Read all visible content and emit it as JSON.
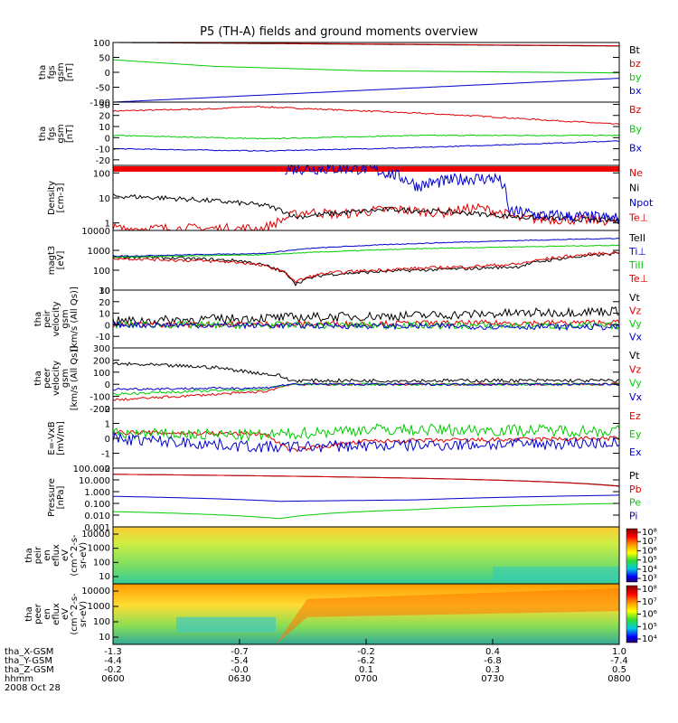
{
  "title": "P5 (TH-A) fields and ground moments overview",
  "chart_data": [
    {
      "id": "p1",
      "type": "line",
      "ylabel": [
        "tha",
        "fgs",
        "gsm",
        "[nT]"
      ],
      "ylim": [
        -100,
        100
      ],
      "yticks": [
        "100",
        "50",
        "0",
        "-50",
        "-100"
      ],
      "ytick_vals": [
        100,
        50,
        0,
        -50,
        -100
      ],
      "series": [
        {
          "name": "Bt",
          "color": "#000000",
          "x": [
            0,
            1
          ],
          "y": [
            100,
            88
          ],
          "noise": 0
        },
        {
          "name": "bz",
          "color": "#dd0000",
          "x": [
            0,
            1
          ],
          "y": [
            101,
            89
          ],
          "noise": 0
        },
        {
          "name": "by",
          "color": "#00cc00",
          "x": [
            0,
            0.2,
            0.5,
            1
          ],
          "y": [
            42,
            20,
            5,
            -2
          ],
          "noise": 0
        },
        {
          "name": "bx",
          "color": "#0000cc",
          "x": [
            0,
            1
          ],
          "y": [
            -100,
            -20
          ],
          "noise": 0
        }
      ]
    },
    {
      "id": "p2",
      "type": "line",
      "ylabel": [
        "tha",
        "fgs",
        "gsm",
        "[nT]"
      ],
      "ylim": [
        -25,
        32
      ],
      "yticks": [
        "30",
        "20",
        "10",
        "0",
        "-10",
        "-20"
      ],
      "ytick_vals": [
        30,
        20,
        10,
        0,
        -10,
        -20
      ],
      "series": [
        {
          "name": "Bz",
          "color": "#dd0000",
          "x": [
            0,
            0.2,
            0.28,
            0.5,
            0.7,
            1
          ],
          "y": [
            24,
            26,
            28,
            24,
            20,
            12
          ],
          "noise": 0.6
        },
        {
          "name": "By",
          "color": "#00cc00",
          "x": [
            0,
            0.3,
            0.6,
            1
          ],
          "y": [
            2,
            -1,
            2,
            2
          ],
          "noise": 0.4
        },
        {
          "name": "Bx",
          "color": "#0000cc",
          "x": [
            0,
            0.3,
            0.6,
            1
          ],
          "y": [
            -10,
            -12,
            -9,
            -3
          ],
          "noise": 0.4
        }
      ]
    },
    {
      "id": "p3",
      "type": "line",
      "log": true,
      "ylabel": [
        "Density",
        "[cm-3]"
      ],
      "ylim": [
        0.5,
        200
      ],
      "yticks": [
        "100",
        "10",
        "1"
      ],
      "ytick_vals": [
        100,
        10,
        1
      ],
      "series": [
        {
          "name": "Ne",
          "color": "#dd0000",
          "x": [
            0,
            0.3,
            0.33,
            0.38,
            0.45,
            0.55,
            0.65,
            0.72,
            0.8,
            1
          ],
          "y": [
            0.6,
            0.6,
            1.2,
            2.8,
            2.2,
            3.5,
            2.5,
            4,
            1.5,
            1.2
          ],
          "noise": 0.2
        },
        {
          "name": "Ni",
          "color": "#000000",
          "x": [
            0,
            0.1,
            0.3,
            0.36,
            0.45,
            0.55,
            0.7,
            0.8,
            1
          ],
          "y": [
            12,
            10,
            5,
            1.7,
            2.5,
            3.5,
            2.5,
            1.7,
            1.2
          ],
          "noise": 0.1
        },
        {
          "name": "Npot",
          "color": "#0000cc",
          "x": [
            0.34,
            0.38,
            0.5,
            0.6,
            0.7,
            0.76,
            0.78,
            0.85,
            1
          ],
          "y": [
            150,
            150,
            150,
            30,
            60,
            60,
            3,
            2,
            1.5
          ],
          "noise": 0.25
        },
        {
          "name": "Te⊥",
          "color": "#dd0000",
          "x": [],
          "y": [],
          "noise": 0
        }
      ]
    },
    {
      "id": "p4",
      "type": "line",
      "log": true,
      "ylabel": [
        "magt3",
        "[eV]"
      ],
      "ylim": [
        10,
        10000
      ],
      "yticks": [
        "10000",
        "1000",
        "100",
        "10"
      ],
      "ytick_vals": [
        10000,
        1000,
        100,
        10
      ],
      "series": [
        {
          "name": "TeII",
          "color": "#000000",
          "x": [
            0,
            0.25,
            0.32,
            0.36,
            0.42,
            0.55,
            0.7,
            0.8,
            1
          ],
          "y": [
            500,
            300,
            120,
            20,
            60,
            90,
            120,
            150,
            700
          ],
          "noise": 0.08
        },
        {
          "name": "Ti⊥",
          "color": "#0000cc",
          "x": [
            0,
            0.3,
            0.4,
            0.6,
            1
          ],
          "y": [
            500,
            700,
            1300,
            2200,
            4000
          ],
          "noise": 0.02
        },
        {
          "name": "TiII",
          "color": "#00cc00",
          "x": [
            0,
            0.3,
            0.4,
            0.6,
            1
          ],
          "y": [
            450,
            600,
            800,
            1200,
            1800
          ],
          "noise": 0.02
        },
        {
          "name": "Te⊥",
          "color": "#dd0000",
          "x": [
            0,
            0.25,
            0.32,
            0.36,
            0.42,
            0.55,
            0.7,
            0.8,
            1
          ],
          "y": [
            400,
            250,
            120,
            25,
            70,
            110,
            150,
            200,
            800
          ],
          "noise": 0.08
        }
      ]
    },
    {
      "id": "p5",
      "type": "line",
      "ylabel": [
        "tha",
        "peir",
        "velocity",
        "gsm",
        "[km/s (All Qs)]"
      ],
      "ylim": [
        -20,
        30
      ],
      "yticks": [
        "30",
        "20",
        "10",
        "0",
        "-10"
      ],
      "ytick_vals": [
        30,
        20,
        10,
        0,
        -10
      ],
      "series": [
        {
          "name": "Vt",
          "color": "#000000",
          "x": [
            0,
            0.3,
            0.6,
            1
          ],
          "y": [
            3,
            6,
            8,
            12
          ],
          "noise": 4
        },
        {
          "name": "Vz",
          "color": "#dd0000",
          "x": [
            0,
            1
          ],
          "y": [
            0,
            2
          ],
          "noise": 2.5
        },
        {
          "name": "Vy",
          "color": "#00cc00",
          "x": [
            0,
            1
          ],
          "y": [
            0,
            -1
          ],
          "noise": 3
        },
        {
          "name": "Vx",
          "color": "#0000cc",
          "x": [
            0,
            1
          ],
          "y": [
            0,
            -2
          ],
          "noise": 2.5
        }
      ]
    },
    {
      "id": "p6",
      "type": "line",
      "ylabel": [
        "tha",
        "peer",
        "velocity",
        "gsm",
        "[km/s (All Qs)]"
      ],
      "ylim": [
        -200,
        300
      ],
      "yticks": [
        "300",
        "200",
        "100",
        "0",
        "-100",
        "-200"
      ],
      "ytick_vals": [
        300,
        200,
        100,
        0,
        -100,
        -200
      ],
      "series": [
        {
          "name": "Vt",
          "color": "#000000",
          "x": [
            0,
            0.2,
            0.33,
            0.35,
            0.6,
            1
          ],
          "y": [
            170,
            140,
            70,
            30,
            30,
            30
          ],
          "noise": 15
        },
        {
          "name": "Vz",
          "color": "#dd0000",
          "x": [
            0,
            0.3,
            0.35,
            1
          ],
          "y": [
            -130,
            -60,
            0,
            0
          ],
          "noise": 10
        },
        {
          "name": "Vy",
          "color": "#00cc00",
          "x": [
            0,
            0.3,
            0.35,
            1
          ],
          "y": [
            -80,
            -40,
            0,
            0
          ],
          "noise": 10
        },
        {
          "name": "Vx",
          "color": "#0000cc",
          "x": [
            0,
            0.3,
            0.35,
            1
          ],
          "y": [
            -40,
            -30,
            0,
            0
          ],
          "noise": 10
        }
      ]
    },
    {
      "id": "p7",
      "type": "line",
      "ylabel": [
        "E=-VxB",
        "[mV/m]"
      ],
      "ylim": [
        -2,
        2
      ],
      "yticks": [
        "2",
        "1",
        "0",
        "-1",
        "-2"
      ],
      "ytick_vals": [
        2,
        1,
        0,
        -1,
        -2
      ],
      "series": [
        {
          "name": "Ez",
          "color": "#dd0000",
          "x": [
            0,
            0.3,
            0.35,
            0.5,
            1
          ],
          "y": [
            0.4,
            0.3,
            -0.8,
            -0.2,
            0
          ],
          "noise": 0.15
        },
        {
          "name": "Ey",
          "color": "#00cc00",
          "x": [
            0,
            0.3,
            0.5,
            1
          ],
          "y": [
            0.3,
            0.2,
            0.6,
            0.5
          ],
          "noise": 0.4
        },
        {
          "name": "Ex",
          "color": "#0000cc",
          "x": [
            0,
            0.3,
            0.5,
            1
          ],
          "y": [
            0,
            -0.6,
            -0.5,
            -0.3
          ],
          "noise": 0.4
        }
      ]
    },
    {
      "id": "p8",
      "type": "line",
      "log": true,
      "ylabel": [
        "Pressure",
        "[nPa]"
      ],
      "ylim": [
        0.001,
        100
      ],
      "yticks": [
        "100.000",
        "10.000",
        "1.000",
        "0.100",
        "0.010",
        "0.001"
      ],
      "ytick_vals": [
        100,
        10,
        1,
        0.1,
        0.01,
        0.001
      ],
      "series": [
        {
          "name": "Pt",
          "color": "#000000",
          "x": [
            0,
            1
          ],
          "y": [
            30,
            3
          ],
          "noise": 0
        },
        {
          "name": "Pb",
          "color": "#dd0000",
          "x": [
            0,
            1
          ],
          "y": [
            30,
            2.8
          ],
          "noise": 0
        },
        {
          "name": "Pe",
          "color": "#00cc00",
          "x": [
            0,
            0.33,
            0.6,
            1
          ],
          "y": [
            0.02,
            0.005,
            0.03,
            0.1
          ],
          "noise": 0
        },
        {
          "name": "Pi",
          "color": "#0000cc",
          "x": [
            0,
            0.33,
            0.6,
            1
          ],
          "y": [
            0.4,
            0.15,
            0.2,
            0.5
          ],
          "noise": 0
        }
      ]
    },
    {
      "id": "p9",
      "type": "heatmap",
      "ylabel": [
        "tha",
        "peir",
        "en",
        "eflux",
        "eV",
        "(cm^2-s-",
        "sr-eV)"
      ],
      "yticks": [
        "10000",
        "1000",
        "100",
        "10"
      ],
      "cbar_ticks": [
        "10⁸",
        "10⁷",
        "10⁶",
        "10⁵",
        "10⁴",
        "10³"
      ]
    },
    {
      "id": "p10",
      "type": "heatmap",
      "ylabel": [
        "tha",
        "peer",
        "en",
        "eflux",
        "eV",
        "(cm^2-s-",
        "sr-eV)"
      ],
      "yticks": [
        "10000",
        "1000",
        "100",
        "10"
      ],
      "cbar_ticks": [
        "10⁸",
        "10⁷",
        "10⁶",
        "10⁵",
        "10⁴"
      ]
    }
  ],
  "xaxis": {
    "row_labels": [
      "tha_X-GSM",
      "tha_Y-GSM",
      "tha_Z-GSM",
      "hhmm",
      "2008 Oct 28"
    ],
    "columns": [
      {
        "x": [
          "-1.3",
          "-4.4",
          "-0.2",
          "0600"
        ]
      },
      {
        "x": [
          "-0.7",
          "-5.4",
          "-0.0",
          "0630"
        ]
      },
      {
        "x": [
          "-0.2",
          "-6.2",
          "0.1",
          "0700"
        ]
      },
      {
        "x": [
          "0.4",
          "-6.8",
          "0.3",
          "0730"
        ]
      },
      {
        "x": [
          "1.0",
          "-7.4",
          "0.5",
          "0800"
        ]
      }
    ]
  }
}
